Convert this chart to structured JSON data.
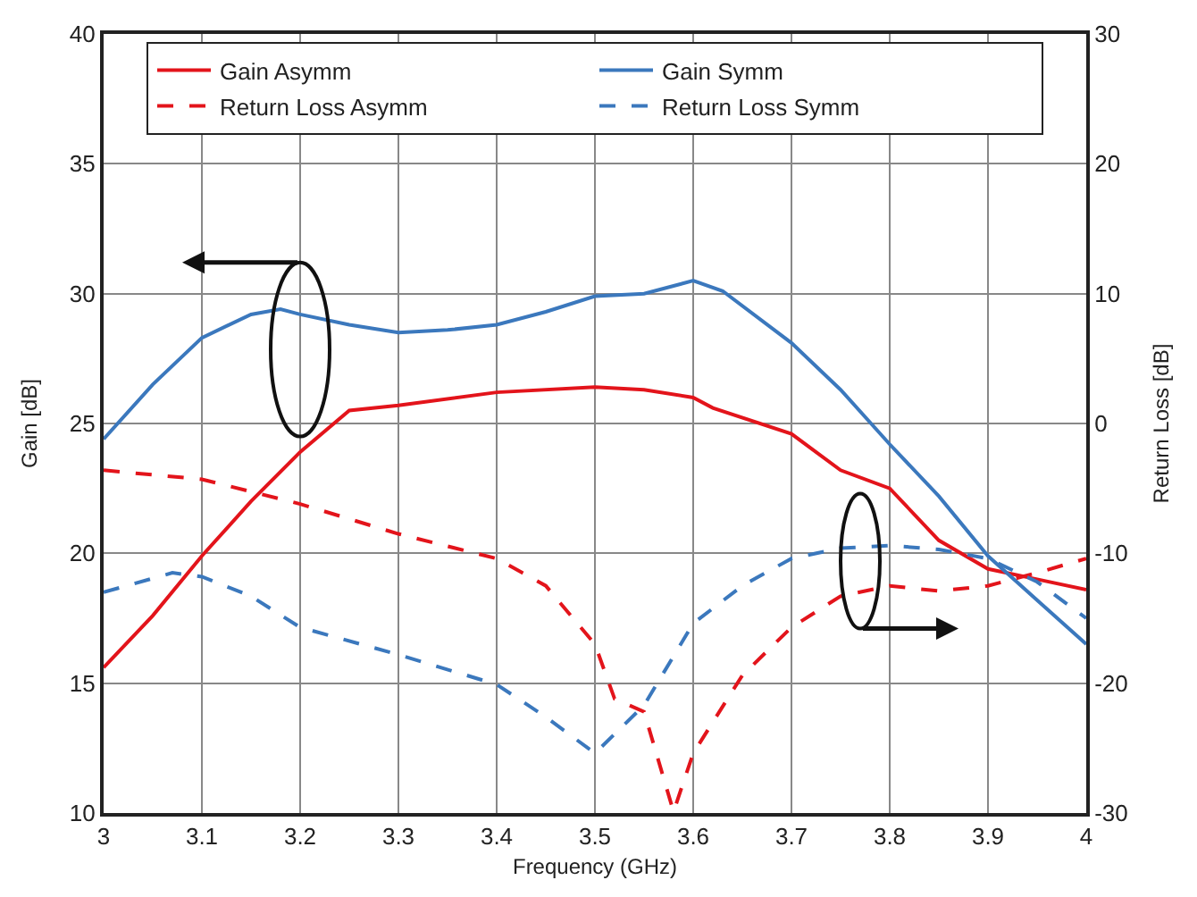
{
  "chart_data": {
    "type": "line",
    "xlabel": "Frequency (GHz)",
    "ylabel": "Gain [dB]",
    "y2label": "Return Loss [dB]",
    "xlim": [
      3,
      4
    ],
    "xticks": [
      3,
      3.1,
      3.2,
      3.3,
      3.4,
      3.5,
      3.6,
      3.7,
      3.8,
      3.9,
      4
    ],
    "ylim": [
      10,
      40
    ],
    "yticks": [
      10,
      15,
      20,
      25,
      30,
      35,
      40
    ],
    "y2lim": [
      -30,
      30
    ],
    "y2ticks": [
      -30,
      -20,
      -10,
      0,
      10,
      20,
      30
    ],
    "grid": true,
    "legend": "top",
    "marker": "none",
    "series": [
      {
        "name": "Gain Asymm",
        "color": "#e3141b",
        "line_style": "solid",
        "x": [
          3.0,
          3.05,
          3.1,
          3.15,
          3.2,
          3.25,
          3.3,
          3.4,
          3.5,
          3.55,
          3.6,
          3.62,
          3.7,
          3.75,
          3.8,
          3.85,
          3.9,
          3.95,
          4.0
        ],
        "values": [
          15.6,
          17.6,
          19.9,
          22.0,
          23.9,
          25.5,
          25.7,
          26.2,
          26.4,
          26.3,
          26.0,
          25.6,
          24.6,
          23.2,
          22.5,
          20.5,
          19.4,
          19.0,
          18.6
        ]
      },
      {
        "name": "Gain Symm",
        "color": "#3b78bd",
        "line_style": "solid",
        "x": [
          3.0,
          3.05,
          3.1,
          3.15,
          3.18,
          3.2,
          3.25,
          3.3,
          3.35,
          3.4,
          3.45,
          3.5,
          3.55,
          3.6,
          3.63,
          3.7,
          3.75,
          3.8,
          3.85,
          3.9,
          3.95,
          4.0
        ],
        "values": [
          24.4,
          26.5,
          28.3,
          29.2,
          29.4,
          29.2,
          28.8,
          28.5,
          28.6,
          28.8,
          29.3,
          29.9,
          30.0,
          30.5,
          30.1,
          28.1,
          26.3,
          24.2,
          22.2,
          19.9,
          18.2,
          16.5
        ]
      },
      {
        "name": "Return Loss Asymm",
        "color": "#e3141b",
        "line_style": "dashed",
        "axis": "y2",
        "x": [
          3.0,
          3.1,
          3.2,
          3.3,
          3.4,
          3.45,
          3.5,
          3.52,
          3.55,
          3.58,
          3.6,
          3.65,
          3.7,
          3.75,
          3.8,
          3.85,
          3.9,
          3.95,
          4.0
        ],
        "values": [
          -3.6,
          -4.3,
          -6.2,
          -8.5,
          -10.4,
          -12.5,
          -17.0,
          -21.2,
          -22.2,
          -29.9,
          -25.4,
          -19.4,
          -15.7,
          -13.3,
          -12.5,
          -12.9,
          -12.5,
          -11.5,
          -10.4
        ]
      },
      {
        "name": "Return Loss Symm",
        "color": "#3b78bd",
        "line_style": "dashed",
        "axis": "y2",
        "x": [
          3.0,
          3.07,
          3.1,
          3.15,
          3.2,
          3.3,
          3.4,
          3.45,
          3.5,
          3.55,
          3.6,
          3.65,
          3.7,
          3.75,
          3.8,
          3.85,
          3.9,
          3.95,
          4.0
        ],
        "values": [
          -13.0,
          -11.5,
          -11.8,
          -13.3,
          -15.7,
          -17.8,
          -20.1,
          -22.6,
          -25.4,
          -21.7,
          -15.4,
          -12.5,
          -10.4,
          -9.6,
          -9.4,
          -9.7,
          -10.4,
          -12.2,
          -15.0
        ]
      }
    ]
  }
}
